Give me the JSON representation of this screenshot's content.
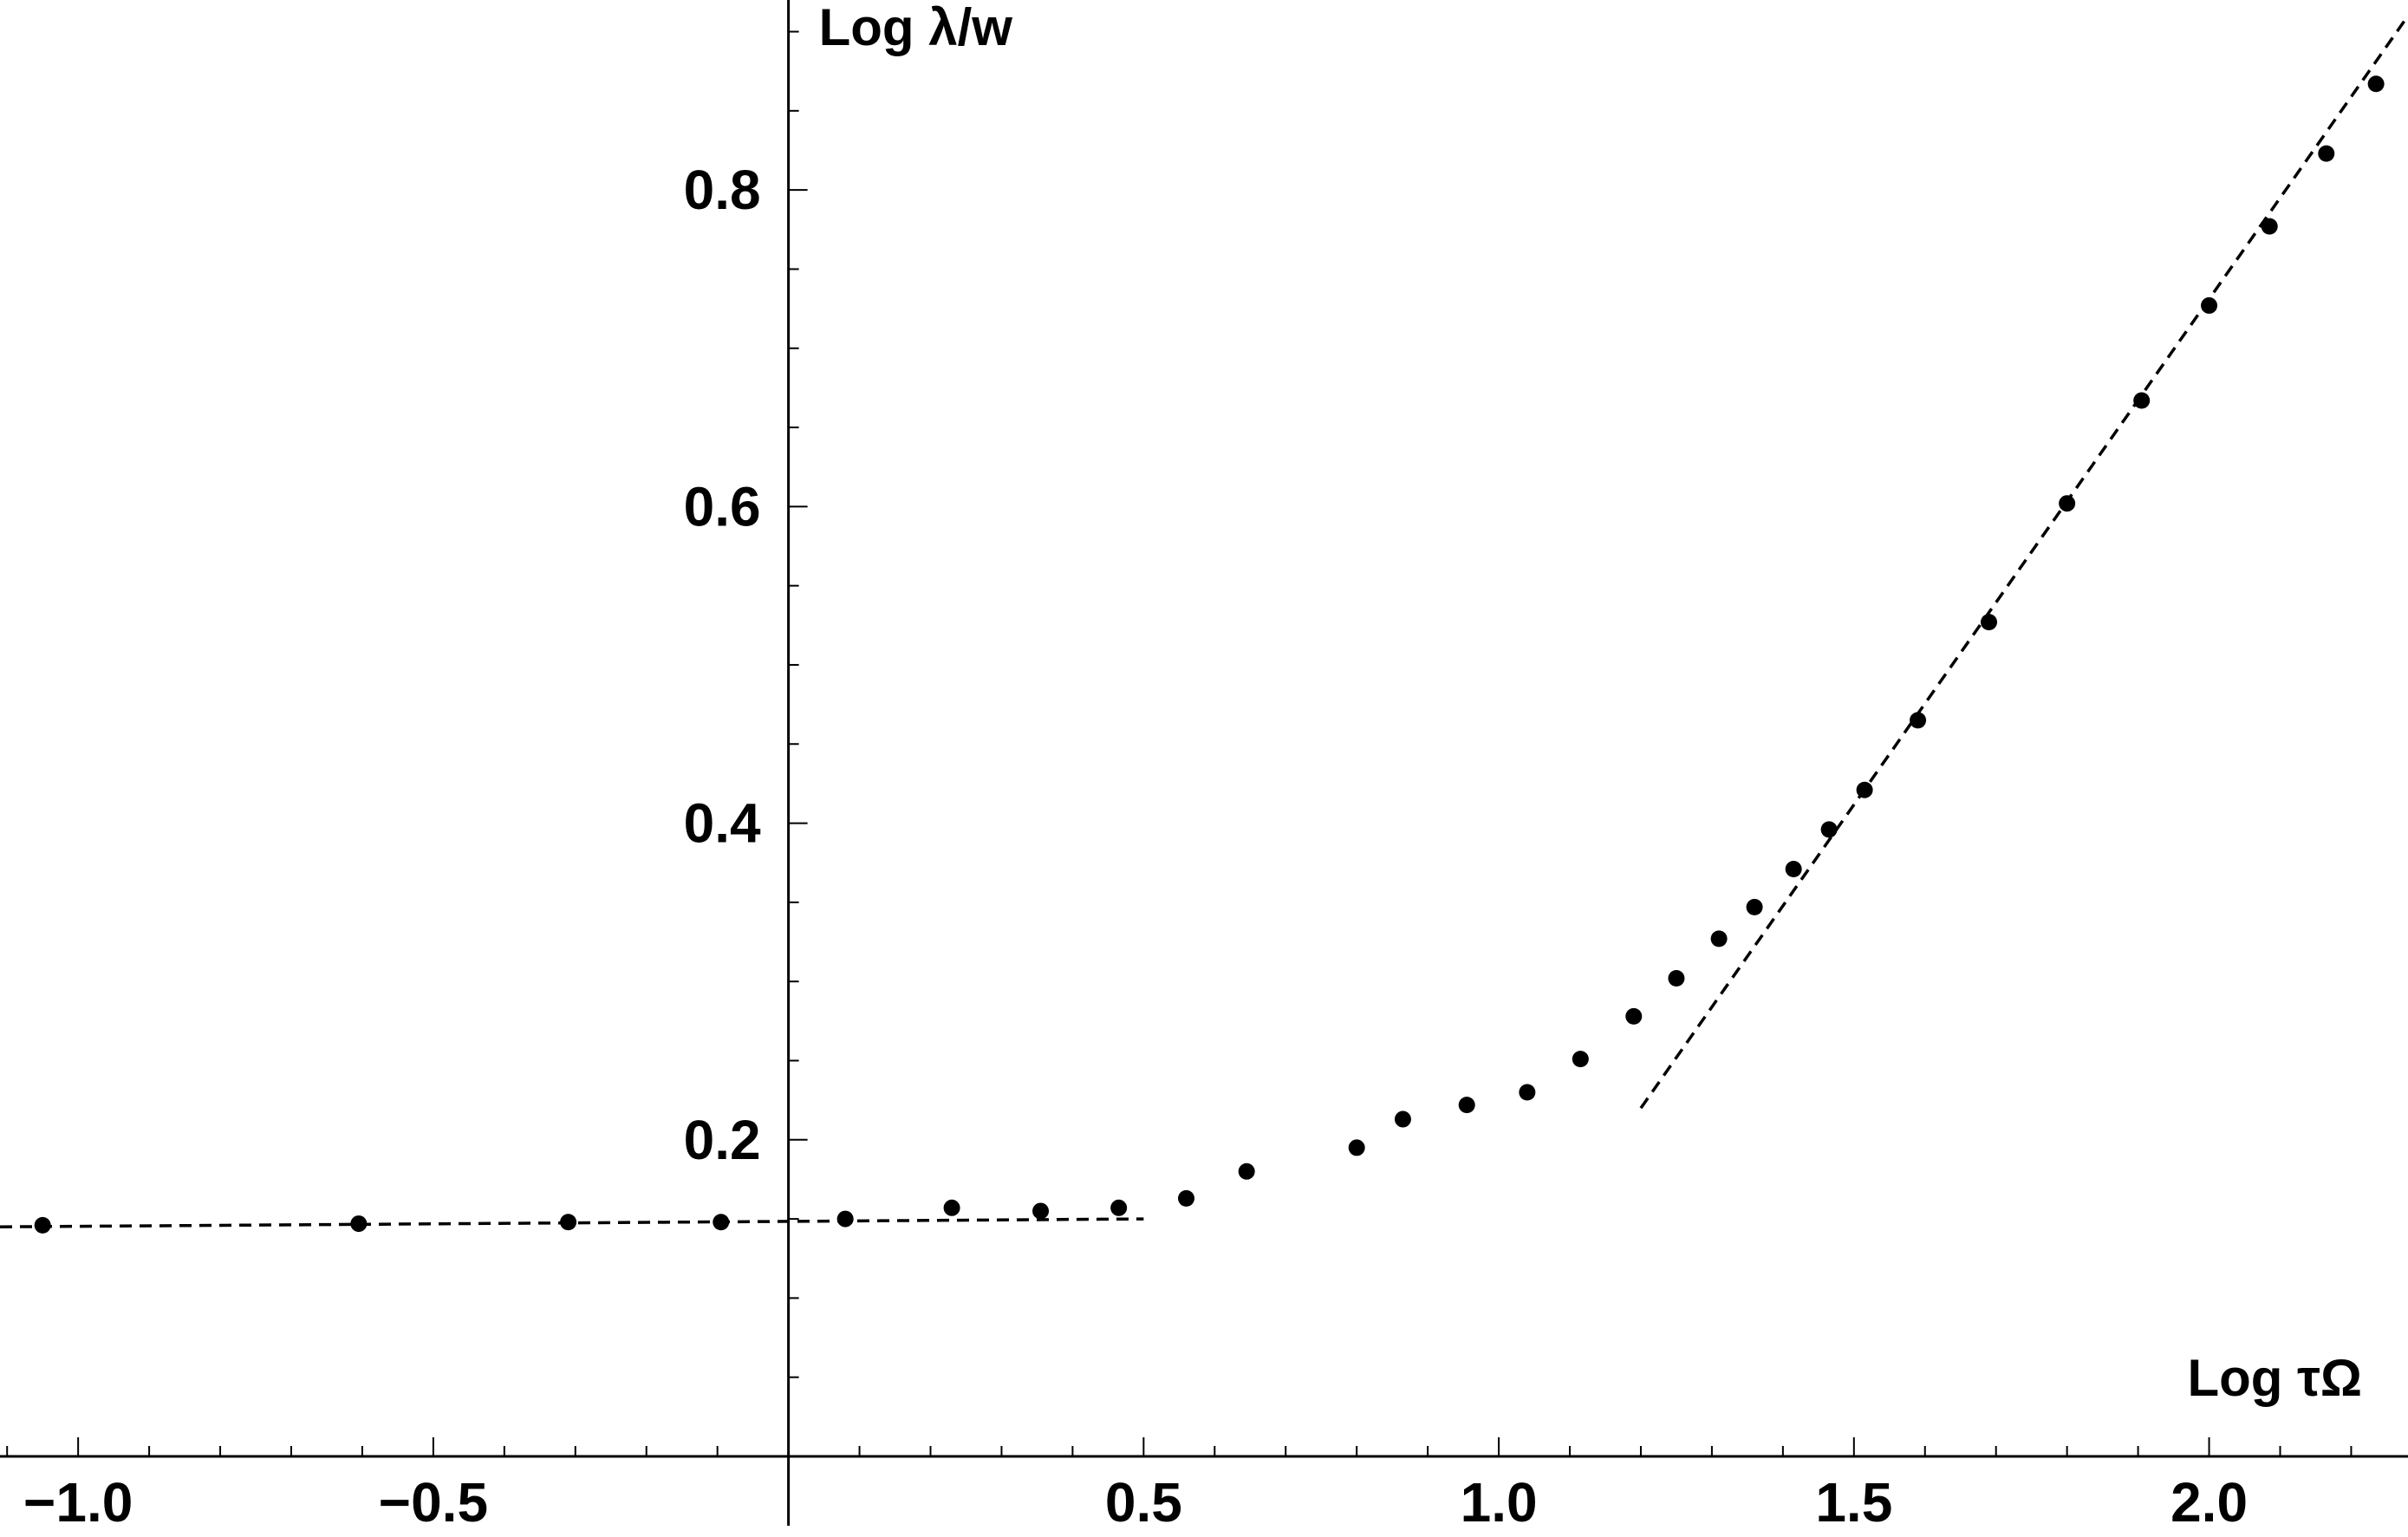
{
  "chart_data": {
    "type": "scatter",
    "xlabel": "Log τΩ",
    "ylabel": "Log λ/w",
    "xlim": [
      -1.11,
      2.28
    ],
    "ylim": [
      0.0,
      0.92
    ],
    "x_ticks": [
      {
        "value": -1.0,
        "label": "−1.0"
      },
      {
        "value": -0.5,
        "label": "−0.5"
      },
      {
        "value": 0.5,
        "label": "0.5"
      },
      {
        "value": 1.0,
        "label": "1.0"
      },
      {
        "value": 1.5,
        "label": "1.5"
      },
      {
        "value": 2.0,
        "label": "2.0"
      }
    ],
    "y_ticks": [
      {
        "value": 0.2,
        "label": "0.2"
      },
      {
        "value": 0.4,
        "label": "0.4"
      },
      {
        "value": 0.6,
        "label": "0.6"
      },
      {
        "value": 0.8,
        "label": "0.8"
      }
    ],
    "x_minor_step": 0.1,
    "y_minor_step": 0.05,
    "grid": false,
    "series": [
      {
        "marker": "dot",
        "color": "#000000",
        "x": [
          -1.05,
          -0.605,
          -0.31,
          -0.095,
          0.08,
          0.23,
          0.355,
          0.465,
          0.56,
          0.645,
          0.8,
          0.865,
          0.955,
          1.04,
          1.115,
          1.19,
          1.25,
          1.31,
          1.36,
          1.415,
          1.465,
          1.515,
          1.59,
          1.69,
          1.8,
          1.905,
          2.0,
          2.085,
          2.165,
          2.235
        ],
        "y": [
          0.146,
          0.147,
          0.148,
          0.148,
          0.15,
          0.157,
          0.155,
          0.157,
          0.163,
          0.18,
          0.195,
          0.213,
          0.222,
          0.23,
          0.251,
          0.278,
          0.302,
          0.327,
          0.347,
          0.371,
          0.396,
          0.421,
          0.465,
          0.527,
          0.602,
          0.667,
          0.727,
          0.777,
          0.823,
          0.867
        ]
      }
    ],
    "reference_lines": [
      {
        "style": "dashed",
        "color": "#000000",
        "x": [
          -1.11,
          0.5
        ],
        "y": [
          0.145,
          0.15
        ]
      },
      {
        "style": "dashed",
        "color": "#000000",
        "x": [
          1.2,
          2.28
        ],
        "y": [
          0.22,
          0.91
        ]
      }
    ]
  }
}
